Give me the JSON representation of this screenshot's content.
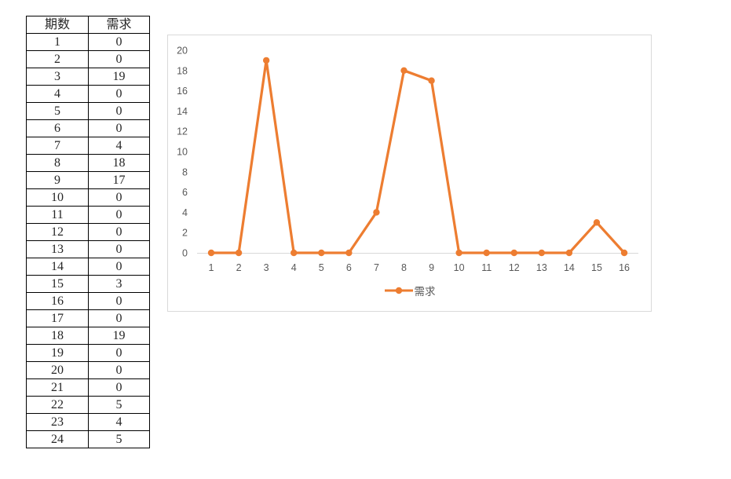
{
  "table": {
    "headers": [
      "期数",
      "需求"
    ],
    "rows": [
      [
        1,
        0
      ],
      [
        2,
        0
      ],
      [
        3,
        19
      ],
      [
        4,
        0
      ],
      [
        5,
        0
      ],
      [
        6,
        0
      ],
      [
        7,
        4
      ],
      [
        8,
        18
      ],
      [
        9,
        17
      ],
      [
        10,
        0
      ],
      [
        11,
        0
      ],
      [
        12,
        0
      ],
      [
        13,
        0
      ],
      [
        14,
        0
      ],
      [
        15,
        3
      ],
      [
        16,
        0
      ],
      [
        17,
        0
      ],
      [
        18,
        19
      ],
      [
        19,
        0
      ],
      [
        20,
        0
      ],
      [
        21,
        0
      ],
      [
        22,
        5
      ],
      [
        23,
        4
      ],
      [
        24,
        5
      ]
    ]
  },
  "chart_data": {
    "type": "line",
    "x": [
      1,
      2,
      3,
      4,
      5,
      6,
      7,
      8,
      9,
      10,
      11,
      12,
      13,
      14,
      15,
      16
    ],
    "series": [
      {
        "name": "需求",
        "values": [
          0,
          0,
          19,
          0,
          0,
          0,
          4,
          18,
          17,
          0,
          0,
          0,
          0,
          0,
          3,
          0
        ],
        "color": "#ED7D31",
        "marker": "circle"
      }
    ],
    "title": "",
    "xlabel": "",
    "ylabel": "",
    "ylim": [
      0,
      20
    ],
    "ytick_step": 2,
    "grid": false,
    "legend_position": "bottom",
    "colors": {
      "axis_line": "#D9D9D9",
      "tick_label": "#595959",
      "chart_border": "#D9D9D9",
      "series_orange": "#ED7D31"
    }
  }
}
